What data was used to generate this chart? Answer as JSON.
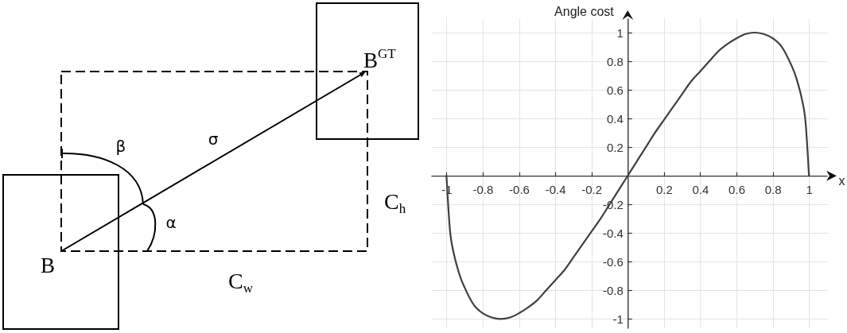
{
  "chart_data": [
    {
      "type": "other",
      "annotations": [
        "β",
        "σ",
        "α",
        "B",
        "B$^{GT}$",
        "C$_{h}$",
        "C$_{w}$"
      ]
    },
    {
      "type": "line",
      "xlabel": "x",
      "ylabel": "Angle cost",
      "color": "#404040",
      "x": [
        -1,
        -0.98,
        -0.96,
        -0.94,
        -0.92,
        -0.9,
        -0.85,
        -0.8,
        -0.75,
        -0.7,
        -0.65,
        -0.6,
        -0.55,
        -0.5,
        -0.45,
        -0.4,
        -0.35,
        -0.3,
        -0.25,
        -0.2,
        -0.15,
        -0.1,
        -0.05,
        0,
        0.05,
        0.1,
        0.15,
        0.2,
        0.25,
        0.3,
        0.35,
        0.4,
        0.45,
        0.5,
        0.55,
        0.6,
        0.65,
        0.7,
        0.75,
        0.8,
        0.85,
        0.9,
        0.92,
        0.94,
        0.96,
        0.98,
        1
      ],
      "values": [
        0,
        -0.39,
        -0.54,
        -0.64,
        -0.72,
        -0.78,
        -0.9,
        -0.96,
        -0.99,
        -1,
        -0.99,
        -0.96,
        -0.92,
        -0.87,
        -0.8,
        -0.73,
        -0.66,
        -0.57,
        -0.48,
        -0.39,
        -0.3,
        -0.2,
        -0.1,
        0,
        0.1,
        0.2,
        0.3,
        0.39,
        0.48,
        0.57,
        0.66,
        0.73,
        0.8,
        0.87,
        0.92,
        0.96,
        0.99,
        1,
        0.99,
        0.96,
        0.9,
        0.78,
        0.72,
        0.64,
        0.54,
        0.39,
        0
      ],
      "xlim": [
        -1.085,
        1.1
      ],
      "ylim": [
        -1.065,
        1.1
      ],
      "xticks": [
        -1,
        -0.8,
        -0.6,
        -0.4,
        -0.2,
        0.2,
        0.4,
        0.6,
        0.8,
        1
      ],
      "yticks": [
        -1,
        -0.8,
        -0.6,
        -0.4,
        -0.2,
        0.2,
        0.4,
        0.6,
        0.8,
        1
      ],
      "grid": true
    }
  ]
}
